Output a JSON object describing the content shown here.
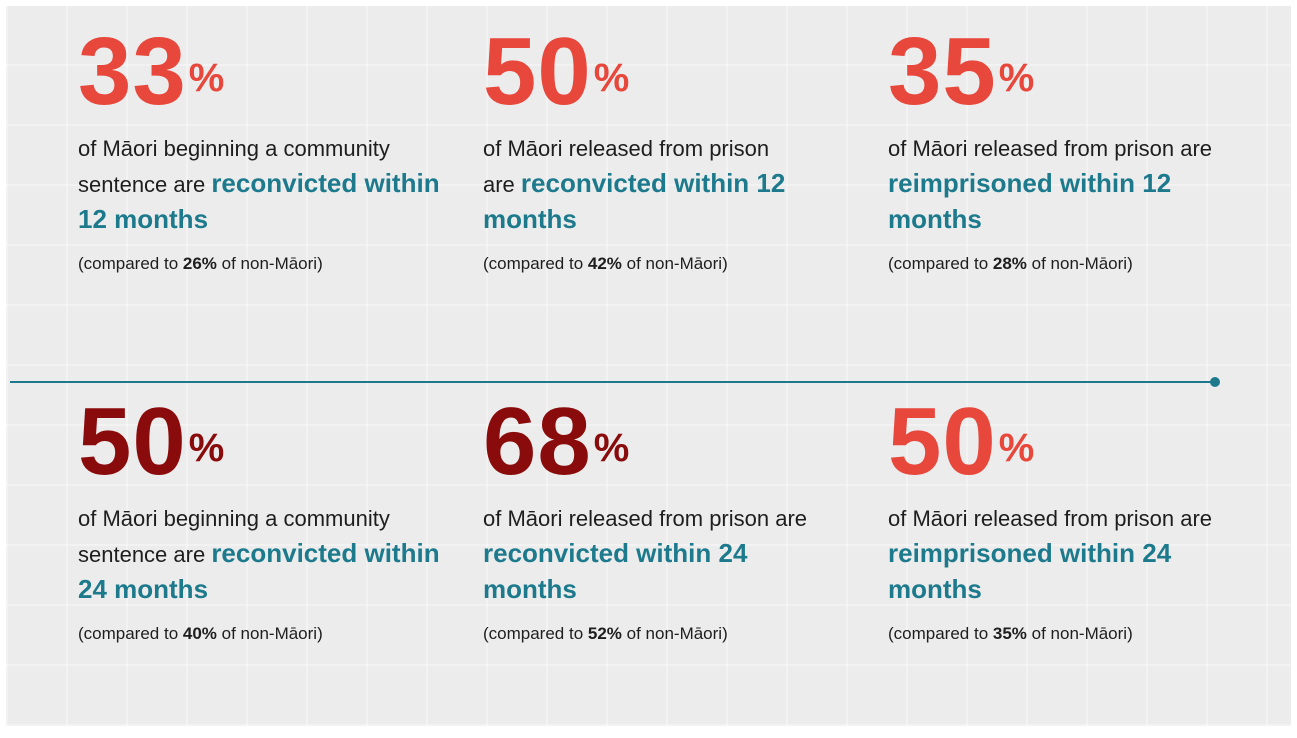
{
  "cards": [
    {
      "number": "33",
      "symbol": "%",
      "text": "of Māori beginning a community sentence are ",
      "highlight": "reconvicted within 12 months",
      "compare_prefix": "(compared to ",
      "compare_value": "26%",
      "compare_suffix": " of non-Māori)"
    },
    {
      "number": "50",
      "symbol": "%",
      "text": "of Māori released from prison are ",
      "highlight": "reconvicted within 12 months",
      "compare_prefix": "(compared to ",
      "compare_value": "42%",
      "compare_suffix": " of non-Māori)"
    },
    {
      "number": "35",
      "symbol": "%",
      "text": "of Māori released from prison are ",
      "highlight": "reimprisoned within 12 months",
      "compare_prefix": "(compared to ",
      "compare_value": "28%",
      "compare_suffix": " of non-Māori)"
    },
    {
      "number": "50",
      "symbol": "%",
      "text": "of Māori beginning a community sentence are ",
      "highlight": "reconvicted within 24 months",
      "compare_prefix": "(compared to ",
      "compare_value": "40%",
      "compare_suffix": " of non-Māori)"
    },
    {
      "number": "68",
      "symbol": "%",
      "text": "of Māori released from prison are ",
      "highlight": "reconvicted within 24 months",
      "compare_prefix": "(compared to ",
      "compare_value": "52%",
      "compare_suffix": " of non-Māori)"
    },
    {
      "number": "50",
      "symbol": "%",
      "text": "of Māori released from prison are ",
      "highlight": "reimprisoned within 24 months",
      "compare_prefix": "(compared to ",
      "compare_value": "35%",
      "compare_suffix": " of non-Māori)"
    }
  ]
}
